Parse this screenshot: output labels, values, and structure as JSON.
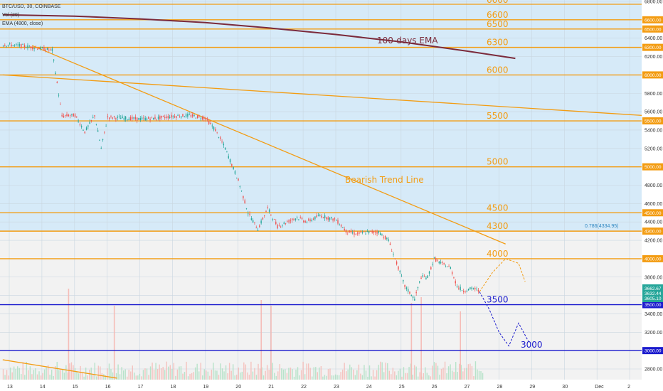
{
  "legend": {
    "symbol": "BTC/USD, 30, COINBASE",
    "volume": "Vol (20)",
    "ema": "EMA (4800, close)"
  },
  "annotations": {
    "ema_label": "100-days EMA",
    "trend_label": "Bearish Trend Line",
    "fib_label": "0.786(4334.95)"
  },
  "last_price_box": [
    "3662.67",
    "3632.44",
    "3605.10"
  ],
  "colors": {
    "background_light_blue": "#d6eaf8",
    "background_grey": "#f2f2f2",
    "orange": "#f39c12",
    "navy": "#1a1acd",
    "ema": "#7b2a3b",
    "bull": "#26a69a",
    "bear": "#ef5350"
  },
  "chart_data": {
    "type": "candlestick",
    "price_axis_ticks": [
      "6800.00",
      "6600.00",
      "6500.00",
      "6400.00",
      "6300.00",
      "6200.00",
      "6000.00",
      "5800.00",
      "5600.00",
      "5500.00",
      "5400.00",
      "5200.00",
      "5000.00",
      "4800.00",
      "4600.00",
      "4500.00",
      "4400.00",
      "4300.00",
      "4200.00",
      "4000.00",
      "3800.00",
      "3600.00",
      "3500.00",
      "3400.00",
      "3200.00",
      "3000.00",
      "2800.00"
    ],
    "highlighted_ticks": [
      "6600.00",
      "6500.00",
      "6300.00",
      "6000.00",
      "5500.00",
      "5000.00",
      "4500.00",
      "4300.00",
      "4000.00",
      "3500.00",
      "3000.00"
    ],
    "date_ticks": [
      {
        "label": "13",
        "day": 13
      },
      {
        "label": "14",
        "day": 14
      },
      {
        "label": "15",
        "day": 15
      },
      {
        "label": "16",
        "day": 16
      },
      {
        "label": "17",
        "day": 17
      },
      {
        "label": "18",
        "day": 18
      },
      {
        "label": "19",
        "day": 19
      },
      {
        "label": "20",
        "day": 20
      },
      {
        "label": "21",
        "day": 21
      },
      {
        "label": "22",
        "day": 22
      },
      {
        "label": "23",
        "day": 23
      },
      {
        "label": "24",
        "day": 24
      },
      {
        "label": "25",
        "day": 25
      },
      {
        "label": "26",
        "day": 26
      },
      {
        "label": "27",
        "day": 27
      },
      {
        "label": "28",
        "day": 28
      },
      {
        "label": "29",
        "day": 29
      },
      {
        "label": "30",
        "day": 30
      },
      {
        "label": "Dec",
        "day": 31
      },
      {
        "label": "2",
        "day": 32
      }
    ],
    "horizontal_levels": [
      {
        "label": "6600",
        "value": 6600,
        "color": "orange"
      },
      {
        "label": "6500",
        "value": 6500,
        "color": "orange"
      },
      {
        "label": "6300",
        "value": 6300,
        "color": "orange"
      },
      {
        "label": "6000",
        "value": 6000,
        "color": "orange"
      },
      {
        "label": "5500",
        "value": 5500,
        "color": "orange"
      },
      {
        "label": "5000",
        "value": 5000,
        "color": "orange"
      },
      {
        "label": "4500",
        "value": 4500,
        "color": "orange"
      },
      {
        "label": "4300",
        "value": 4300,
        "color": "orange"
      },
      {
        "label": "4000",
        "value": 4000,
        "color": "orange"
      },
      {
        "label": "3500",
        "value": 3500,
        "color": "navy"
      },
      {
        "label": "3000",
        "value": 3000,
        "color": "navy"
      }
    ],
    "top_partial_label": "6600",
    "ema_curve": [
      [
        12.8,
        6655
      ],
      [
        15,
        6640
      ],
      [
        17,
        6610
      ],
      [
        19,
        6570
      ],
      [
        21,
        6510
      ],
      [
        23,
        6440
      ],
      [
        25,
        6360
      ],
      [
        27,
        6260
      ],
      [
        28.5,
        6180
      ]
    ],
    "bearish_trend_line": [
      [
        13.7,
        6320
      ],
      [
        28.2,
        4160
      ]
    ],
    "long_trend_line": [
      [
        12.8,
        6000
      ],
      [
        32.8,
        5550
      ]
    ],
    "bottom_trend_line": [
      [
        12.8,
        2900
      ],
      [
        16.3,
        2700
      ]
    ],
    "price_path": [
      [
        12.8,
        6330
      ],
      [
        13.3,
        6320
      ],
      [
        13.7,
        6300
      ],
      [
        14.3,
        6270
      ],
      [
        14.6,
        5550
      ],
      [
        14.8,
        5560
      ],
      [
        15.0,
        5560
      ],
      [
        15.3,
        5380
      ],
      [
        15.6,
        5560
      ],
      [
        15.8,
        5200
      ],
      [
        16.0,
        5540
      ],
      [
        16.5,
        5530
      ],
      [
        17.0,
        5520
      ],
      [
        17.5,
        5530
      ],
      [
        18.0,
        5550
      ],
      [
        18.5,
        5560
      ],
      [
        19.0,
        5530
      ],
      [
        19.3,
        5400
      ],
      [
        19.6,
        5200
      ],
      [
        20.0,
        4850
      ],
      [
        20.3,
        4500
      ],
      [
        20.6,
        4320
      ],
      [
        20.9,
        4550
      ],
      [
        21.2,
        4350
      ],
      [
        21.5,
        4400
      ],
      [
        21.8,
        4450
      ],
      [
        22.1,
        4400
      ],
      [
        22.5,
        4470
      ],
      [
        23.0,
        4420
      ],
      [
        23.3,
        4300
      ],
      [
        23.6,
        4270
      ],
      [
        24.0,
        4290
      ],
      [
        24.3,
        4290
      ],
      [
        24.6,
        4200
      ],
      [
        24.9,
        3900
      ],
      [
        25.1,
        3700
      ],
      [
        25.4,
        3560
      ],
      [
        25.6,
        3800
      ],
      [
        25.8,
        3800
      ],
      [
        26.0,
        4000
      ],
      [
        26.2,
        3950
      ],
      [
        26.5,
        3900
      ],
      [
        26.7,
        3700
      ],
      [
        26.9,
        3650
      ],
      [
        27.2,
        3680
      ],
      [
        27.4,
        3640
      ]
    ],
    "projection_up": [
      [
        27.4,
        3640
      ],
      [
        27.8,
        3850
      ],
      [
        28.2,
        4000
      ],
      [
        28.6,
        3950
      ],
      [
        28.8,
        3750
      ]
    ],
    "projection_down": [
      [
        27.4,
        3640
      ],
      [
        27.7,
        3450
      ],
      [
        28.0,
        3200
      ],
      [
        28.3,
        3050
      ],
      [
        28.6,
        3300
      ],
      [
        28.9,
        3100
      ]
    ],
    "volume_spikes": [
      [
        14.8,
        320
      ],
      [
        16.2,
        260
      ],
      [
        20.7,
        280
      ],
      [
        21.0,
        260
      ],
      [
        25.3,
        270
      ],
      [
        25.6,
        290
      ],
      [
        26.8,
        240
      ]
    ]
  }
}
